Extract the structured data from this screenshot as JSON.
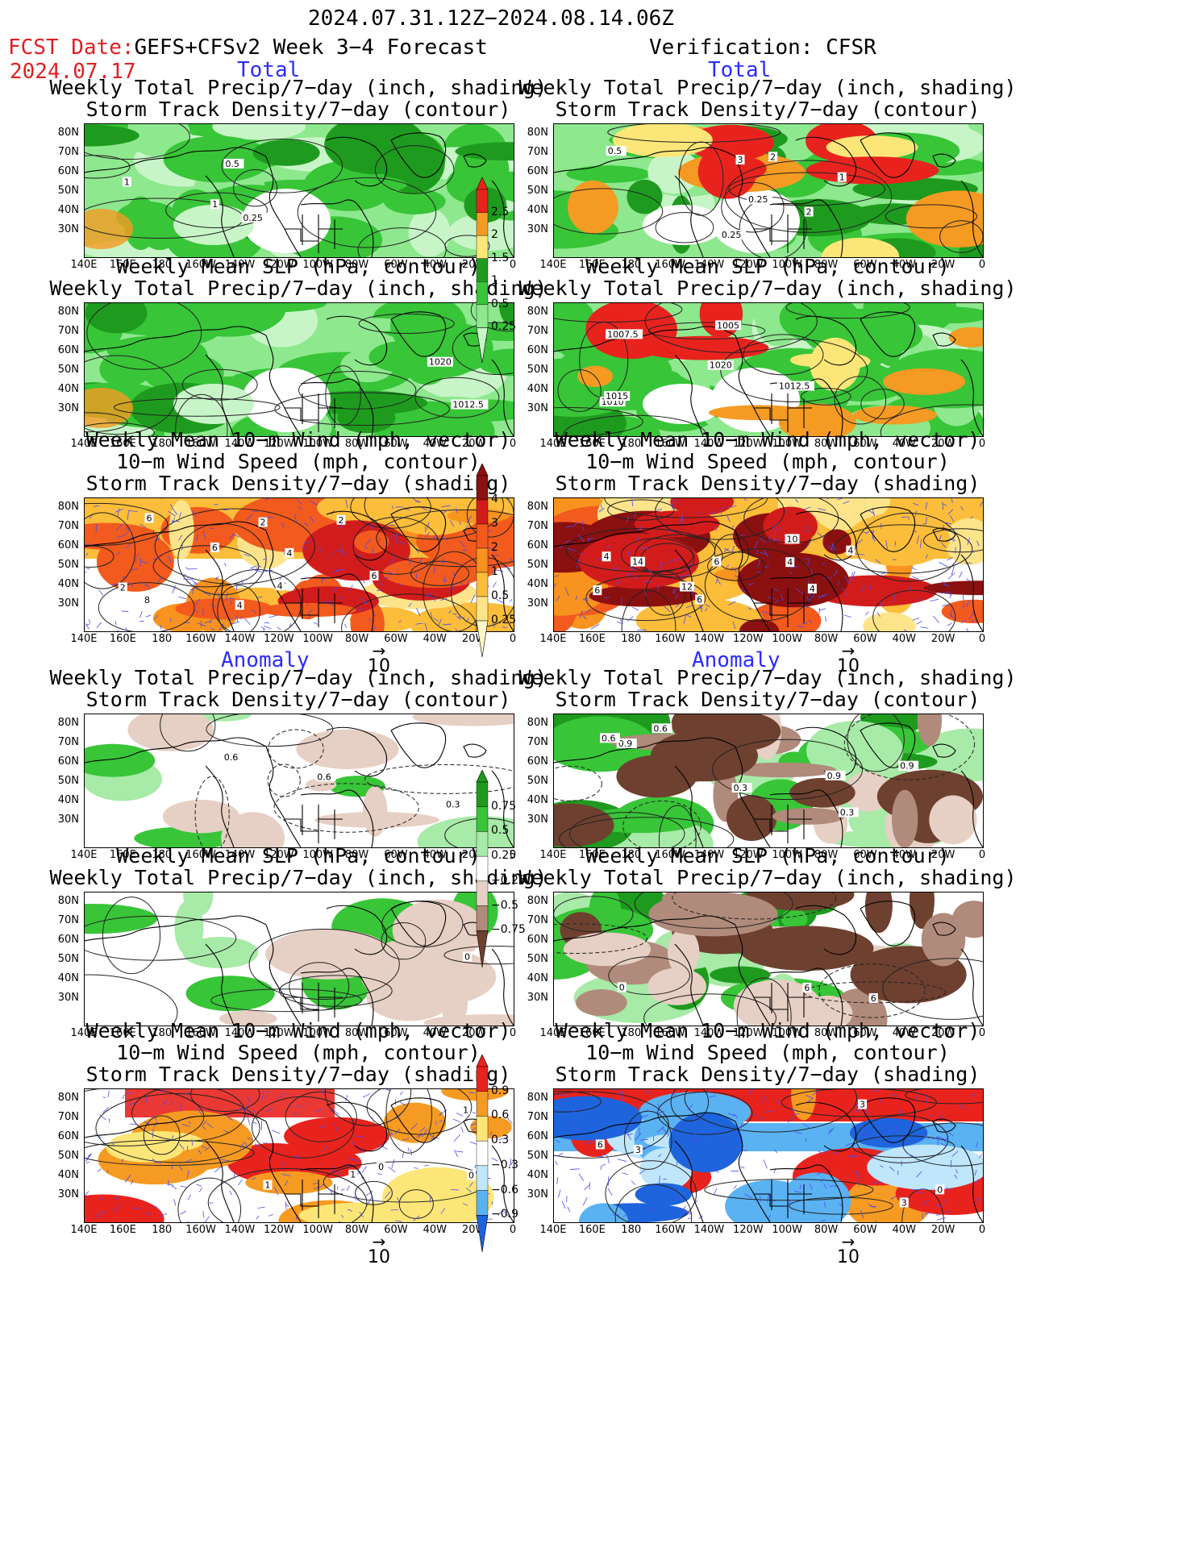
{
  "header": {
    "period": "2024.07.31.12Z−2024.08.14.06Z",
    "fcst_date_label": "FCST Date:",
    "fcst_model": "GEFS+CFSv2 Week 3−4 Forecast",
    "fcst_date": "2024.07.17",
    "verification": "Verification: CFSR"
  },
  "sections": {
    "total": "Total",
    "anomaly": "Anomaly"
  },
  "titles": {
    "precip_storm": [
      "Weekly Total Precip/7−day (inch, shading)",
      "Storm Track Density/7−day (contour)"
    ],
    "slp_precip": [
      "Weekly Mean SLP (hPa, contour)",
      "Weekly Total Precip/7−day (inch, shading)"
    ],
    "wind_storm": [
      "Weekly Mean 10−m Wind (mph, vector)",
      "10−m Wind Speed (mph, contour)",
      "Storm Track Density/7−day (shading)"
    ]
  },
  "axes": {
    "lat_labels": [
      "80N",
      "70N",
      "60N",
      "50N",
      "40N",
      "30N"
    ],
    "lon_labels": [
      "140E",
      "160E",
      "180",
      "160W",
      "140W",
      "120W",
      "100W",
      "80W",
      "60W",
      "40W",
      "20W",
      "0"
    ]
  },
  "vector_reference": "10",
  "colorbars": {
    "total_precip": {
      "labels": [
        "2.5",
        "2",
        "1.5",
        "1",
        "0.5",
        "0.25"
      ],
      "colors": [
        "#e8231e",
        "#f59a22",
        "#fde678",
        "#1e9b1e",
        "#38c538",
        "#8ee88e",
        "#c8f5c8"
      ]
    },
    "total_storm": {
      "labels": [
        "4",
        "3",
        "2",
        "1",
        "0.5",
        "0.25"
      ],
      "colors": [
        "#8b1010",
        "#d21c1c",
        "#f25a1e",
        "#f7931e",
        "#fbbd3a",
        "#fde48a",
        "#fff7c8"
      ]
    },
    "anom_precip": {
      "labels": [
        "0.75",
        "0.5",
        "0.25",
        "−0.25",
        "−0.5",
        "−0.75"
      ],
      "colors": [
        "#1e9b1e",
        "#38c538",
        "#a8eaa8",
        "#ffffff",
        "#e6cfc4",
        "#b08a7a",
        "#6e4030"
      ]
    },
    "anom_storm": {
      "labels": [
        "0.9",
        "0.6",
        "0.3",
        "−0.3",
        "−0.6",
        "−0.9"
      ],
      "colors": [
        "#e8231e",
        "#f59a22",
        "#fde678",
        "#ffffff",
        "#bfe6fb",
        "#5ab2f2",
        "#1e64dc"
      ]
    }
  },
  "contour_labels": {
    "fcst_total_precip": [
      "1",
      "0.25",
      "0.5",
      "1"
    ],
    "obs_total_precip": [
      "0.25",
      "2",
      "0.25",
      "0.5",
      "1",
      "3",
      "2"
    ],
    "fcst_total_slp": [
      "1012.5",
      "1020"
    ],
    "obs_total_slp": [
      "1007.5",
      "1010",
      "1012.5",
      "1015",
      "1005",
      "1020"
    ],
    "fcst_total_wind": [
      "2",
      "2",
      "4",
      "2",
      "4",
      "4",
      "6",
      "6",
      "8",
      "6"
    ],
    "obs_total_wind": [
      "4",
      "4",
      "4",
      "4",
      "6",
      "12",
      "14",
      "6",
      "10",
      "6"
    ],
    "fcst_anom_precip": [
      "0.6",
      "0.3",
      "0.6"
    ],
    "obs_anom_precip": [
      "0.3",
      "0.9",
      "0.3",
      "0.6",
      "0.9",
      "0.6",
      "0.9"
    ],
    "fcst_anom_slp": [
      "0"
    ],
    "obs_anom_slp": [
      "0",
      "6",
      "6"
    ],
    "fcst_anom_wind": [
      "1",
      "1",
      "0",
      "0",
      "1"
    ],
    "obs_anom_wind": [
      "3",
      "3",
      "3",
      "6",
      "0"
    ]
  }
}
